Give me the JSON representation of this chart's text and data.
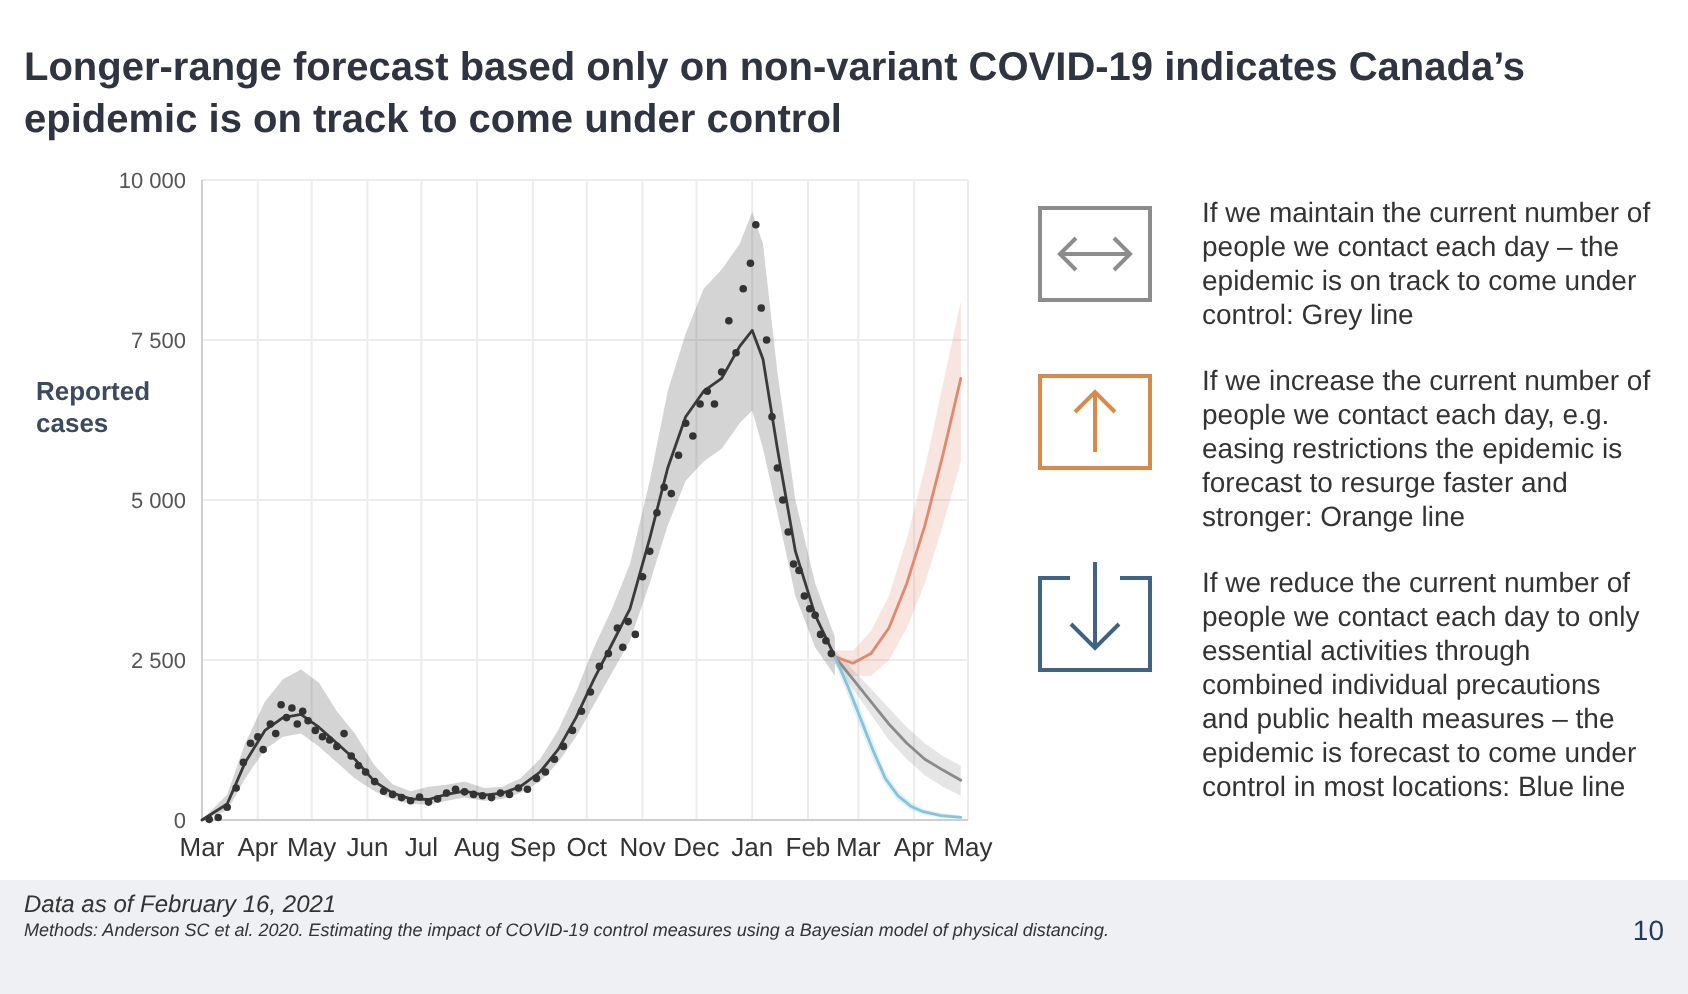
{
  "chart_data": {
    "type": "line",
    "title": "Longer-range forecast based only on non-variant COVID-19 indicates Canada’s epidemic is on track to come under control",
    "ylabel": "Reported cases",
    "xlim": [
      "2020-03-01",
      "2021-05-01"
    ],
    "xticks": [
      {
        "value": "2020-03-01",
        "label": "Mar"
      },
      {
        "value": "2020-04-01",
        "label": "Apr"
      },
      {
        "value": "2020-05-01",
        "label": "May"
      },
      {
        "value": "2020-06-01",
        "label": "Jun"
      },
      {
        "value": "2020-07-01",
        "label": "Jul"
      },
      {
        "value": "2020-08-01",
        "label": "Aug"
      },
      {
        "value": "2020-09-01",
        "label": "Sep"
      },
      {
        "value": "2020-10-01",
        "label": "Oct"
      },
      {
        "value": "2020-11-01",
        "label": "Nov"
      },
      {
        "value": "2020-12-01",
        "label": "Dec"
      },
      {
        "value": "2021-01-01",
        "label": "Jan"
      },
      {
        "value": "2021-02-01",
        "label": "Feb"
      },
      {
        "value": "2021-03-01",
        "label": "Mar"
      },
      {
        "value": "2021-04-01",
        "label": "Apr"
      },
      {
        "value": "2021-05-01",
        "label": "May"
      }
    ],
    "ylim": [
      0,
      10000
    ],
    "yticks": [
      {
        "value": 0,
        "label": "0"
      },
      {
        "value": 2500,
        "label": "2 500"
      },
      {
        "value": 5000,
        "label": "5 000"
      },
      {
        "value": 7500,
        "label": "7 500"
      },
      {
        "value": 10000,
        "label": "10 000"
      }
    ],
    "grid": true,
    "series": [
      {
        "color": "#3a3a3a",
        "x": [
          "2020-03-01",
          "2020-03-15",
          "2020-03-25",
          "2020-04-05",
          "2020-04-15",
          "2020-04-25",
          "2020-05-05",
          "2020-05-15",
          "2020-05-25",
          "2020-06-05",
          "2020-06-15",
          "2020-06-25",
          "2020-07-05",
          "2020-07-15",
          "2020-07-25",
          "2020-08-05",
          "2020-08-15",
          "2020-08-25",
          "2020-09-05",
          "2020-09-15",
          "2020-09-25",
          "2020-10-05",
          "2020-10-15",
          "2020-10-25",
          "2020-11-05",
          "2020-11-15",
          "2020-11-25",
          "2020-12-05",
          "2020-12-15",
          "2020-12-25",
          "2021-01-01",
          "2021-01-07",
          "2021-01-15",
          "2021-01-25",
          "2021-02-05",
          "2021-02-16"
        ],
        "values": [
          0,
          250,
          900,
          1400,
          1600,
          1650,
          1450,
          1200,
          950,
          600,
          420,
          330,
          320,
          400,
          450,
          390,
          420,
          520,
          750,
          1100,
          1600,
          2200,
          2750,
          3300,
          4400,
          5500,
          6300,
          6700,
          6900,
          7400,
          7650,
          7200,
          5800,
          4200,
          3200,
          2550
        ],
        "lower": [
          0,
          150,
          650,
          1100,
          1300,
          1350,
          1150,
          900,
          650,
          450,
          320,
          250,
          240,
          300,
          350,
          300,
          330,
          420,
          600,
          900,
          1300,
          1800,
          2300,
          2800,
          3700,
          4600,
          5300,
          5600,
          5800,
          6200,
          6400,
          5800,
          4800,
          3500,
          2700,
          2250
        ],
        "upper": [
          0,
          400,
          1200,
          1850,
          2200,
          2350,
          2150,
          1700,
          1350,
          850,
          560,
          450,
          520,
          550,
          600,
          500,
          520,
          650,
          950,
          1400,
          2000,
          2700,
          3300,
          4000,
          5300,
          6700,
          7600,
          8300,
          8600,
          9000,
          9500,
          9000,
          7000,
          5000,
          3700,
          2850
        ]
      },
      {
        "type": "scatter",
        "color": "#333333",
        "marker": "circle",
        "x": [
          "2020-03-05",
          "2020-03-10",
          "2020-03-15",
          "2020-03-20",
          "2020-03-24",
          "2020-03-28",
          "2020-04-01",
          "2020-04-04",
          "2020-04-08",
          "2020-04-11",
          "2020-04-14",
          "2020-04-17",
          "2020-04-20",
          "2020-04-23",
          "2020-04-26",
          "2020-04-29",
          "2020-05-03",
          "2020-05-07",
          "2020-05-11",
          "2020-05-15",
          "2020-05-19",
          "2020-05-23",
          "2020-05-27",
          "2020-05-31",
          "2020-06-05",
          "2020-06-10",
          "2020-06-15",
          "2020-06-20",
          "2020-06-25",
          "2020-06-30",
          "2020-07-05",
          "2020-07-10",
          "2020-07-15",
          "2020-07-20",
          "2020-07-25",
          "2020-07-30",
          "2020-08-04",
          "2020-08-09",
          "2020-08-14",
          "2020-08-19",
          "2020-08-24",
          "2020-08-29",
          "2020-09-03",
          "2020-09-08",
          "2020-09-13",
          "2020-09-18",
          "2020-09-23",
          "2020-09-28",
          "2020-10-03",
          "2020-10-08",
          "2020-10-13",
          "2020-10-18",
          "2020-10-21",
          "2020-10-24",
          "2020-10-28",
          "2020-11-01",
          "2020-11-05",
          "2020-11-09",
          "2020-11-13",
          "2020-11-17",
          "2020-11-21",
          "2020-11-25",
          "2020-11-29",
          "2020-12-03",
          "2020-12-07",
          "2020-12-11",
          "2020-12-15",
          "2020-12-19",
          "2020-12-23",
          "2020-12-27",
          "2020-12-31",
          "2021-01-03",
          "2021-01-06",
          "2021-01-09",
          "2021-01-12",
          "2021-01-15",
          "2021-01-18",
          "2021-01-21",
          "2021-01-24",
          "2021-01-27",
          "2021-01-30",
          "2021-02-02",
          "2021-02-05",
          "2021-02-08",
          "2021-02-11",
          "2021-02-14"
        ],
        "values": [
          10,
          40,
          200,
          500,
          900,
          1200,
          1300,
          1100,
          1500,
          1350,
          1800,
          1600,
          1750,
          1500,
          1700,
          1550,
          1400,
          1300,
          1250,
          1150,
          1350,
          1000,
          850,
          750,
          600,
          450,
          400,
          350,
          300,
          360,
          280,
          330,
          420,
          480,
          440,
          400,
          380,
          350,
          420,
          400,
          500,
          480,
          650,
          750,
          950,
          1150,
          1400,
          1700,
          2000,
          2400,
          2600,
          3000,
          2700,
          3100,
          2900,
          3800,
          4200,
          4800,
          5200,
          5100,
          5700,
          6200,
          6000,
          6500,
          6700,
          6500,
          7000,
          7800,
          7300,
          8300,
          8700,
          9300,
          8000,
          7500,
          6300,
          5500,
          5000,
          4500,
          4000,
          3900,
          3500,
          3300,
          3200,
          2900,
          2800,
          2600
        ]
      },
      {
        "color": "#8a8a8a",
        "x": [
          "2021-02-16",
          "2021-02-26",
          "2021-03-08",
          "2021-03-18",
          "2021-03-28",
          "2021-04-07",
          "2021-04-17",
          "2021-04-27"
        ],
        "values": [
          2550,
          2200,
          1850,
          1500,
          1200,
          950,
          780,
          620
        ],
        "lower": [
          2450,
          2050,
          1650,
          1250,
          950,
          700,
          520,
          380
        ],
        "upper": [
          2650,
          2350,
          2050,
          1750,
          1450,
          1200,
          1000,
          850
        ]
      },
      {
        "color": "#e3886c",
        "x": [
          "2021-02-16",
          "2021-02-26",
          "2021-03-08",
          "2021-03-18",
          "2021-03-28",
          "2021-04-07",
          "2021-04-17",
          "2021-04-27"
        ],
        "values": [
          2550,
          2450,
          2600,
          3000,
          3700,
          4600,
          5700,
          6900
        ],
        "lower": [
          2450,
          2250,
          2250,
          2500,
          3000,
          3700,
          4600,
          5600
        ],
        "upper": [
          2650,
          2650,
          2950,
          3500,
          4400,
          5500,
          6800,
          8100
        ]
      },
      {
        "color": "#86c3dd",
        "x": [
          "2021-02-16",
          "2021-02-23",
          "2021-03-02",
          "2021-03-09",
          "2021-03-16",
          "2021-03-23",
          "2021-03-30",
          "2021-04-06",
          "2021-04-16",
          "2021-04-27"
        ],
        "values": [
          2550,
          2100,
          1600,
          1100,
          650,
          380,
          220,
          130,
          70,
          40
        ],
        "lower": [
          2450,
          1950,
          1450,
          950,
          550,
          300,
          160,
          90,
          40,
          20
        ],
        "upper": [
          2650,
          2250,
          1750,
          1250,
          750,
          460,
          290,
          180,
          110,
          70
        ]
      }
    ],
    "annotations": [
      "If we maintain the current number of people we contact each day – the epidemic is on track to come under control: Grey line",
      "If we increase the current number of people we contact each day, e.g. easing restrictions the epidemic is forecast to resurge faster and stronger: Orange line",
      "If we reduce the current number of people we contact each day to only essential activities through combined individual precautions and public health measures – the epidemic is forecast to come under control in most locations: Blue line",
      "Data as of February 16, 2021",
      "Methods: Anderson SC et al. 2020. Estimating the impact of COVID-19 control measures using a Bayesian model of physical distancing.",
      "10"
    ]
  }
}
